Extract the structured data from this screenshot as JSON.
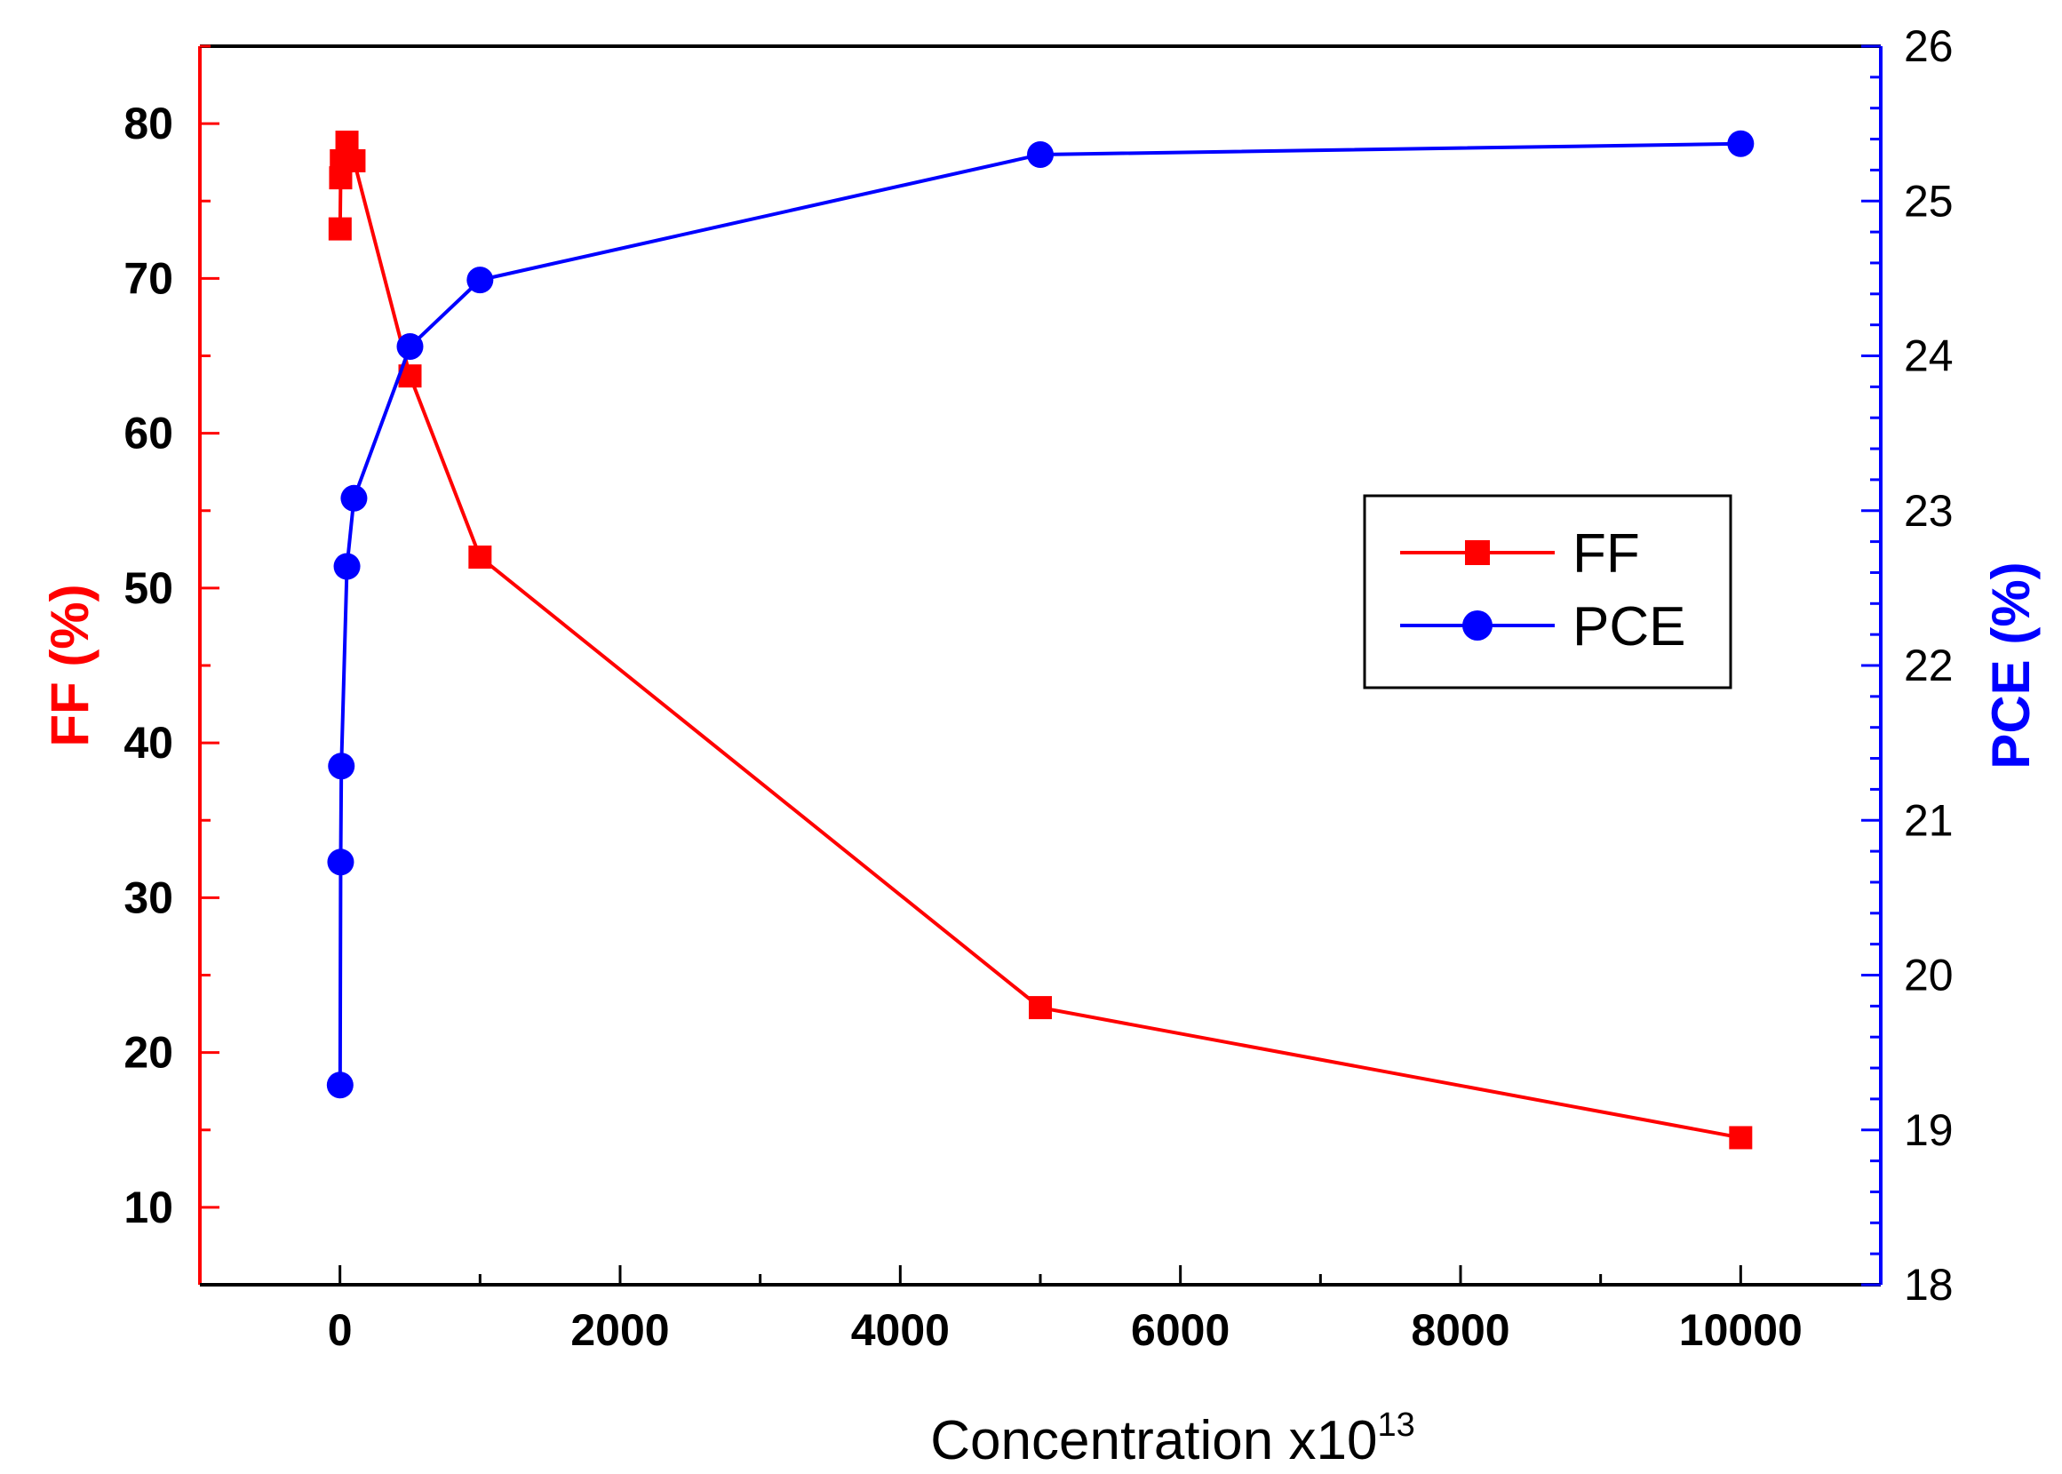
{
  "chart_data": {
    "type": "line",
    "title": "",
    "xlabel": "Concentration x10",
    "xlabel_superscript": "13",
    "xlim": [
      -1000,
      11000
    ],
    "x_ticks": [
      0,
      2000,
      4000,
      6000,
      8000,
      10000
    ],
    "x_tick_labels": [
      "0",
      "2000",
      "4000",
      "6000",
      "8000",
      "10000"
    ],
    "grid": false,
    "legend_position": "center-right",
    "y_axes": {
      "left": {
        "label": "FF (%)",
        "ylim": [
          5,
          85
        ],
        "ticks": [
          10,
          20,
          30,
          40,
          50,
          60,
          70,
          80
        ],
        "tick_labels": [
          "10",
          "20",
          "30",
          "40",
          "50",
          "60",
          "70",
          "80"
        ],
        "color": "#ff0000"
      },
      "right": {
        "label": "PCE (%)",
        "ylim": [
          18,
          26
        ],
        "ticks": [
          18,
          19,
          20,
          21,
          22,
          23,
          24,
          25,
          26
        ],
        "tick_labels": [
          "18",
          "19",
          "20",
          "21",
          "22",
          "23",
          "24",
          "25",
          "26"
        ],
        "color": "#0000ff"
      }
    },
    "series": [
      {
        "name": "FF",
        "axis": "left",
        "color": "#ff0000",
        "marker": "square",
        "x": [
          1,
          5,
          10,
          50,
          100,
          500,
          1000,
          5000,
          10000
        ],
        "values": [
          73.2,
          76.5,
          77.6,
          78.8,
          77.6,
          63.7,
          52.0,
          22.9,
          14.5
        ]
      },
      {
        "name": "PCE",
        "axis": "right",
        "color": "#0000ff",
        "marker": "circle",
        "x": [
          1,
          5,
          10,
          50,
          100,
          500,
          1000,
          5000,
          10000
        ],
        "values": [
          19.29,
          20.73,
          21.35,
          22.64,
          23.08,
          24.06,
          24.49,
          25.3,
          25.37
        ]
      }
    ],
    "legend": [
      "FF",
      "PCE"
    ]
  }
}
